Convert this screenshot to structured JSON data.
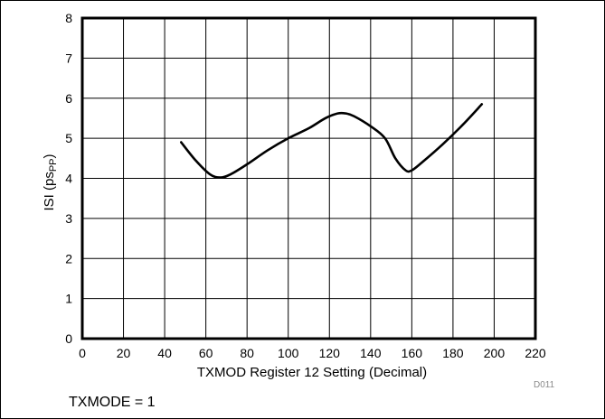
{
  "chart_data": {
    "type": "line",
    "xlabel": "TXMOD Register 12 Setting (Decimal)",
    "ylabel_main": "ISI (ps",
    "ylabel_sub": "PP",
    "ylabel_end": ")",
    "xlim": [
      0,
      220
    ],
    "ylim": [
      0,
      8
    ],
    "xticks": [
      0,
      20,
      40,
      60,
      80,
      100,
      120,
      140,
      160,
      180,
      200,
      220
    ],
    "yticks": [
      0,
      1,
      2,
      3,
      4,
      5,
      6,
      7,
      8
    ],
    "grid": true,
    "series": [
      {
        "x": [
          48,
          55,
          62,
          67,
          72,
          80,
          90,
          100,
          110,
          118,
          124,
          128,
          132,
          140,
          147,
          152,
          157,
          160,
          165,
          175,
          185,
          194
        ],
        "y": [
          4.9,
          4.45,
          4.1,
          4.02,
          4.1,
          4.35,
          4.7,
          5.0,
          5.25,
          5.5,
          5.62,
          5.62,
          5.55,
          5.3,
          5.0,
          4.5,
          4.2,
          4.2,
          4.4,
          4.85,
          5.35,
          5.85
        ]
      }
    ]
  },
  "doc_id": "D011",
  "footnote": "TXMODE = 1"
}
